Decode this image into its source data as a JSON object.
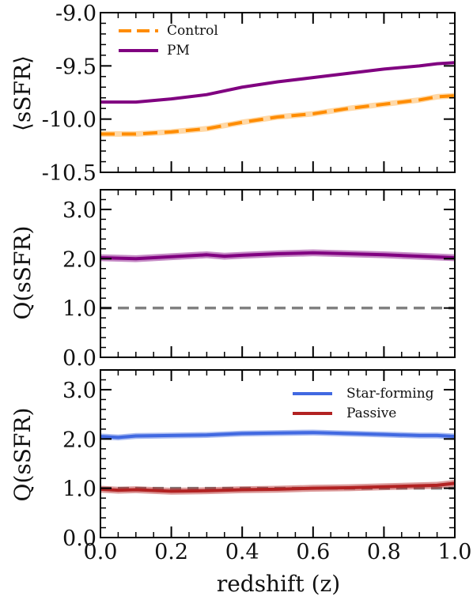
{
  "chart_data": [
    {
      "type": "line",
      "ylabel": "⟨sSFR⟩",
      "ylim": [
        -10.5,
        -9.0
      ],
      "yticks": [
        -9.0,
        -9.5,
        -10.0,
        -10.5
      ],
      "ytick_labels": [
        "-9.0",
        "-9.5",
        "-10.0",
        "-10.5"
      ],
      "xlim": [
        0.0,
        1.0
      ],
      "legend_position": "top-left",
      "series": [
        {
          "name": "Control",
          "color": "#ff8c00",
          "style": "dashed",
          "x": [
            0.0,
            0.05,
            0.1,
            0.2,
            0.3,
            0.4,
            0.5,
            0.6,
            0.7,
            0.8,
            0.9,
            0.95,
            1.0
          ],
          "y": [
            -10.14,
            -10.14,
            -10.14,
            -10.12,
            -10.09,
            -10.03,
            -9.98,
            -9.95,
            -9.9,
            -9.86,
            -9.82,
            -9.79,
            -9.78
          ]
        },
        {
          "name": "PM",
          "color": "#800080",
          "style": "solid",
          "x": [
            0.0,
            0.05,
            0.1,
            0.2,
            0.3,
            0.4,
            0.5,
            0.6,
            0.7,
            0.8,
            0.9,
            0.95,
            1.0
          ],
          "y": [
            -9.84,
            -9.84,
            -9.84,
            -9.81,
            -9.77,
            -9.7,
            -9.65,
            -9.61,
            -9.57,
            -9.53,
            -9.5,
            -9.48,
            -9.47
          ]
        }
      ]
    },
    {
      "type": "line",
      "ylabel": "Q(sSFR)",
      "ylim": [
        0.0,
        3.4
      ],
      "yticks": [
        0.0,
        1.0,
        2.0,
        3.0
      ],
      "ytick_labels": [
        "0.0",
        "1.0",
        "2.0",
        "3.0"
      ],
      "xlim": [
        0.0,
        1.0
      ],
      "reference_line": {
        "y": 1.0,
        "color": "#808080",
        "style": "dashed"
      },
      "series": [
        {
          "name": "",
          "color": "#800080",
          "style": "solid",
          "band": 0.07,
          "x": [
            0.0,
            0.1,
            0.2,
            0.3,
            0.35,
            0.4,
            0.5,
            0.6,
            0.7,
            0.8,
            0.9,
            1.0
          ],
          "y": [
            2.02,
            2.0,
            2.04,
            2.08,
            2.05,
            2.07,
            2.1,
            2.12,
            2.1,
            2.08,
            2.05,
            2.02
          ]
        }
      ]
    },
    {
      "type": "line",
      "ylabel": "Q(sSFR)",
      "xlabel": "redshift (z)",
      "ylim": [
        0.0,
        3.4
      ],
      "yticks": [
        0.0,
        1.0,
        2.0,
        3.0
      ],
      "ytick_labels": [
        "0.0",
        "1.0",
        "2.0",
        "3.0"
      ],
      "xlim": [
        0.0,
        1.0
      ],
      "xticks": [
        0.0,
        0.2,
        0.4,
        0.6,
        0.8,
        1.0
      ],
      "xtick_labels": [
        "0.0",
        "0.2",
        "0.4",
        "0.6",
        "0.8",
        "1.0"
      ],
      "legend_position": "top-right",
      "reference_line": {
        "y": 1.0,
        "color": "#808080",
        "style": "dashed"
      },
      "series": [
        {
          "name": "Star-forming",
          "color": "#4169e1",
          "style": "solid",
          "band": 0.06,
          "x": [
            0.0,
            0.05,
            0.1,
            0.2,
            0.3,
            0.4,
            0.5,
            0.6,
            0.7,
            0.8,
            0.9,
            0.95,
            1.0
          ],
          "y": [
            2.05,
            2.03,
            2.06,
            2.07,
            2.08,
            2.11,
            2.12,
            2.13,
            2.11,
            2.09,
            2.07,
            2.07,
            2.05
          ]
        },
        {
          "name": "Passive",
          "color": "#b22222",
          "style": "solid",
          "band": 0.07,
          "x": [
            0.0,
            0.05,
            0.1,
            0.2,
            0.3,
            0.4,
            0.5,
            0.6,
            0.7,
            0.8,
            0.9,
            0.95,
            1.0
          ],
          "y": [
            0.98,
            0.96,
            0.97,
            0.94,
            0.95,
            0.97,
            0.98,
            1.0,
            1.01,
            1.03,
            1.05,
            1.06,
            1.1
          ]
        }
      ]
    }
  ]
}
